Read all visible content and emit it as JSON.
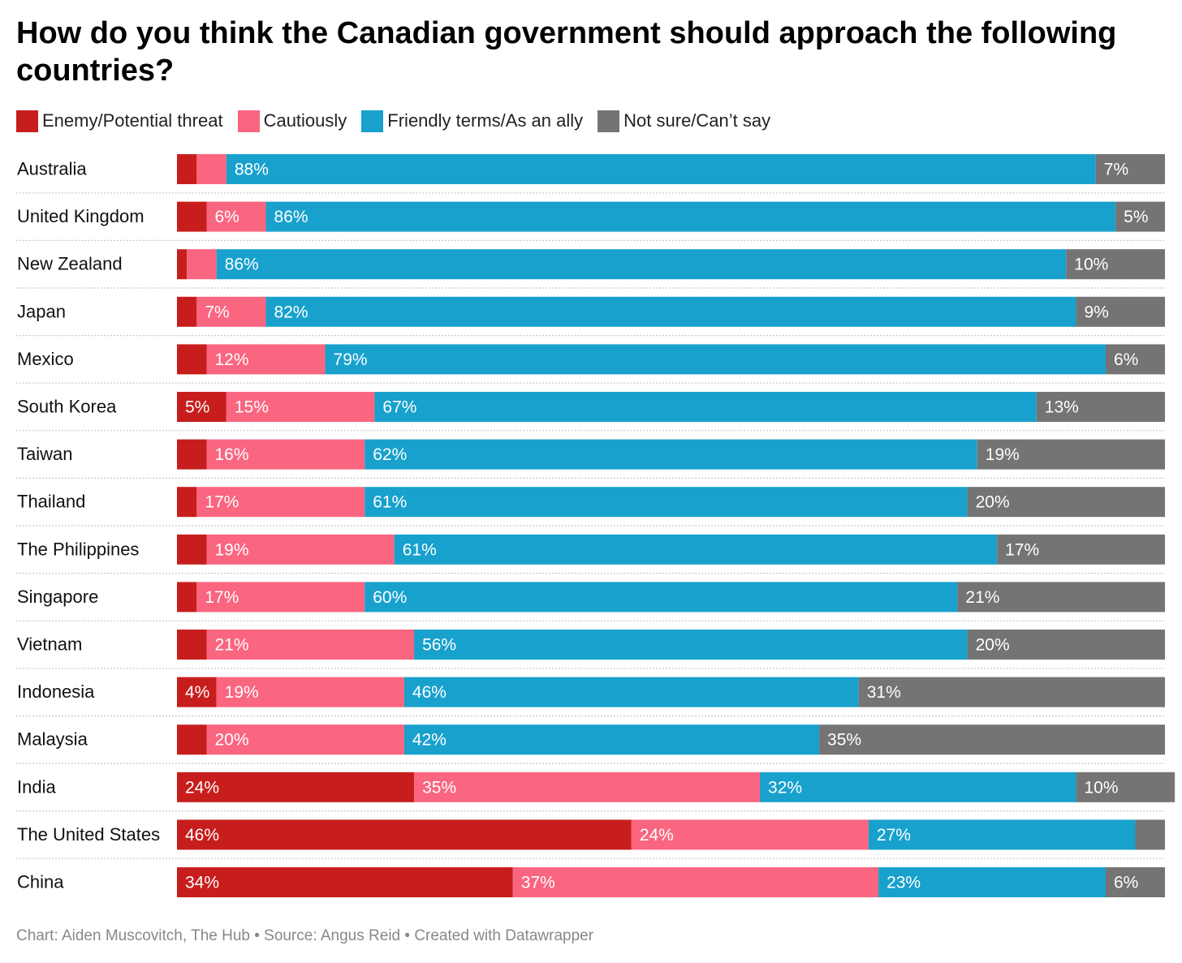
{
  "chart_data": {
    "type": "bar",
    "orientation": "horizontal",
    "stacked": true,
    "title": "How do you think the Canadian government should approach the following countries?",
    "footer": "Chart: Aiden Muscovitch, The Hub • Source: Angus Reid • Created with Datawrapper",
    "legend_position": "top-left",
    "categories": [
      "Australia",
      "United Kingdom",
      "New Zealand",
      "Japan",
      "Mexico",
      "South Korea",
      "Taiwan",
      "Thailand",
      "The Philippines",
      "Singapore",
      "Vietnam",
      "Indonesia",
      "Malaysia",
      "India",
      "The United States",
      "China"
    ],
    "series": [
      {
        "name": "Enemy/Potential threat",
        "color": "#c71e1d",
        "values": [
          2,
          3,
          1,
          2,
          3,
          5,
          3,
          2,
          3,
          2,
          3,
          4,
          3,
          24,
          46,
          34
        ]
      },
      {
        "name": "Cautiously",
        "color": "#fa6580",
        "values": [
          3,
          6,
          3,
          7,
          12,
          15,
          16,
          17,
          19,
          17,
          21,
          19,
          20,
          35,
          24,
          37
        ]
      },
      {
        "name": "Friendly terms/As an ally",
        "color": "#18a1cd",
        "values": [
          88,
          86,
          86,
          82,
          79,
          67,
          62,
          61,
          61,
          60,
          56,
          46,
          42,
          32,
          27,
          23
        ]
      },
      {
        "name": "Not sure/Can’t say",
        "color": "#747474",
        "values": [
          7,
          5,
          10,
          9,
          6,
          13,
          19,
          20,
          17,
          21,
          20,
          31,
          35,
          10,
          3,
          6
        ]
      }
    ],
    "xlim": [
      0,
      100
    ],
    "grid": false,
    "label_min_value": 4
  }
}
